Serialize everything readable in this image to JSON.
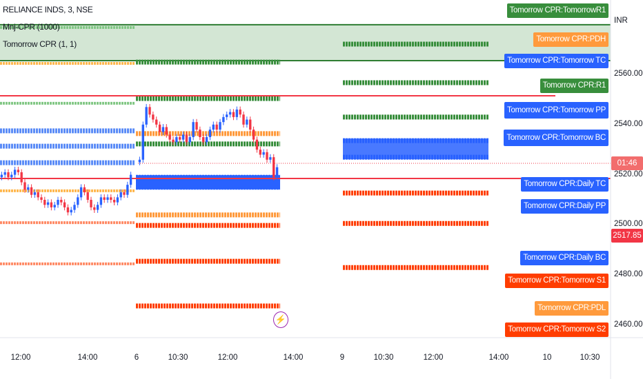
{
  "header": {
    "symbol": "RELIANCE INDS, 3, NSE",
    "indicators": [
      "Mnj-CPR (1000)",
      "Tomorrow CPR (1, 1)"
    ]
  },
  "chart_data": {
    "type": "candlestick",
    "currency": "INR",
    "ylim": [
      2451,
      2590
    ],
    "y_ticks": [
      2560,
      2540,
      2520,
      2500,
      2480,
      2460
    ],
    "y_tick_labels": [
      "2560.00",
      "2540.00",
      "2520.00",
      "2500.00",
      "2480.00",
      "2460.00"
    ],
    "x_tick_labels": [
      "12:00",
      "14:00",
      "6",
      "10:30",
      "12:00",
      "14:00",
      "9",
      "10:30",
      "12:00",
      "14:00",
      "10",
      "10:30"
    ],
    "last_price": "2517.85",
    "countdown": "01:46",
    "series": [
      {
        "session": "day1",
        "closes": [
          2520,
          2521,
          2519,
          2520,
          2522,
          2521,
          2517,
          2514,
          2515,
          2512,
          2513,
          2511,
          2510,
          2508,
          2509,
          2507,
          2508,
          2510,
          2509,
          2507,
          2505,
          2506,
          2508,
          2511,
          2515,
          2513,
          2510,
          2507,
          2506,
          2508,
          2511,
          2510,
          2511,
          2510,
          2509,
          2511,
          2513,
          2512,
          2516,
          2520
        ]
      },
      {
        "session": "day2",
        "closes": [
          2526,
          2540,
          2547,
          2544,
          2542,
          2540,
          2537,
          2539,
          2536,
          2534,
          2533,
          2535,
          2534,
          2536,
          2533,
          2535,
          2541,
          2538,
          2535,
          2533,
          2535,
          2538,
          2540,
          2538,
          2541,
          2543,
          2544,
          2545,
          2543,
          2546,
          2544,
          2540,
          2542,
          2538,
          2534,
          2530,
          2528,
          2529,
          2526,
          2527,
          2519,
          2523
        ]
      }
    ],
    "band": {
      "upper": 2579.8,
      "lower": 2565.5,
      "color": "#2e7d32"
    },
    "solid_levels": [
      {
        "price": 2551.5,
        "color": "#f23645",
        "extent": "partial"
      },
      {
        "price": 2518.5,
        "color": "#f23645",
        "extent": "full"
      }
    ],
    "levels": [
      {
        "session": "day1",
        "price": 2578.7,
        "color": "#81c784",
        "weight": "thin"
      },
      {
        "session": "day1",
        "price": 2564.4,
        "color": "#ffb74d",
        "weight": "thin"
      },
      {
        "session": "day1",
        "price": 2548.5,
        "color": "#81c784",
        "weight": "thin"
      },
      {
        "session": "day1",
        "price": 2537.5,
        "color": "#5b8cf7",
        "weight": "thick"
      },
      {
        "session": "day1",
        "price": 2531.4,
        "color": "#5b8cf7",
        "weight": "thick"
      },
      {
        "session": "day1",
        "price": 2524.8,
        "color": "#5b8cf7",
        "weight": "thick"
      },
      {
        "session": "day1",
        "price": 2513.6,
        "color": "#ffb74d",
        "weight": "thin"
      },
      {
        "session": "day1",
        "price": 2500.9,
        "color": "#ff8a65",
        "weight": "thin"
      },
      {
        "session": "day1",
        "price": 2484.5,
        "color": "#ff8a65",
        "weight": "thin"
      },
      {
        "session": "day2",
        "price": 2564.9,
        "color": "#388e3c",
        "weight": "thick"
      },
      {
        "session": "day2",
        "price": 2550.4,
        "color": "#388e3c",
        "weight": "thick"
      },
      {
        "session": "day2",
        "price": 2536.4,
        "color": "#ff9a3c",
        "weight": "thick"
      },
      {
        "session": "day2",
        "price": 2532.3,
        "color": "#388e3c",
        "weight": "thick"
      },
      {
        "session": "day2",
        "price": 2519.0,
        "color": "#2962ff",
        "weight": "thick"
      },
      {
        "session": "day2",
        "price": 2515.0,
        "color": "#2962ff",
        "weight": "thick"
      },
      {
        "session": "day2",
        "price": 2504.0,
        "color": "#ff9a3c",
        "weight": "thick"
      },
      {
        "session": "day2",
        "price": 2499.8,
        "color": "#ff3d00",
        "weight": "thick"
      },
      {
        "session": "day2",
        "price": 2485.5,
        "color": "#ff3d00",
        "weight": "thick"
      },
      {
        "session": "day2",
        "price": 2467.7,
        "color": "#ff3d00",
        "weight": "thick"
      },
      {
        "session": "day3",
        "price": 2572.1,
        "color": "#388e3c",
        "weight": "thick"
      },
      {
        "session": "day3",
        "price": 2556.7,
        "color": "#388e3c",
        "weight": "thick"
      },
      {
        "session": "day3",
        "price": 2543.0,
        "color": "#388e3c",
        "weight": "thick"
      },
      {
        "session": "day3",
        "price": 2533.6,
        "color": "#2962ff",
        "weight": "thick"
      },
      {
        "session": "day3",
        "price": 2527.0,
        "color": "#2962ff",
        "weight": "thick"
      },
      {
        "session": "day3",
        "price": 2512.7,
        "color": "#ff3d00",
        "weight": "thick"
      },
      {
        "session": "day3",
        "price": 2500.6,
        "color": "#ff3d00",
        "weight": "thick"
      },
      {
        "session": "day3",
        "price": 2483.0,
        "color": "#ff3d00",
        "weight": "thick"
      }
    ],
    "level_labels": [
      {
        "text": "Tomorrow CPR:TomorrowR1",
        "color": "#388e3c"
      },
      {
        "text": "Tomorrow CPR:PDH",
        "color": "#ff9a3c"
      },
      {
        "text": "Tomorrow CPR:Tomorrow TC",
        "color": "#2962ff"
      },
      {
        "text": "Tomorrow CPR:R1",
        "color": "#388e3c"
      },
      {
        "text": "Tomorrow CPR:Tomorrow PP",
        "color": "#2962ff"
      },
      {
        "text": "Tomorrow CPR:Tomorrow BC",
        "color": "#2962ff"
      },
      {
        "text": "Tomorrow CPR:Daily TC",
        "color": "#2962ff"
      },
      {
        "text": "Tomorrow CPR:Daily PP",
        "color": "#2962ff"
      },
      {
        "text": "Tomorrow CPR:Daily BC",
        "color": "#2962ff"
      },
      {
        "text": "Tomorrow CPR:Tomorrow S1",
        "color": "#ff3d00"
      },
      {
        "text": "Tomorrow CPR:PDL",
        "color": "#ff9a3c"
      },
      {
        "text": "Tomorrow CPR:Tomorrow S2",
        "color": "#ff3d00"
      }
    ],
    "colors": {
      "up": "#2962ff",
      "down": "#f23645"
    }
  },
  "icons": {
    "event": "lightning-icon"
  }
}
